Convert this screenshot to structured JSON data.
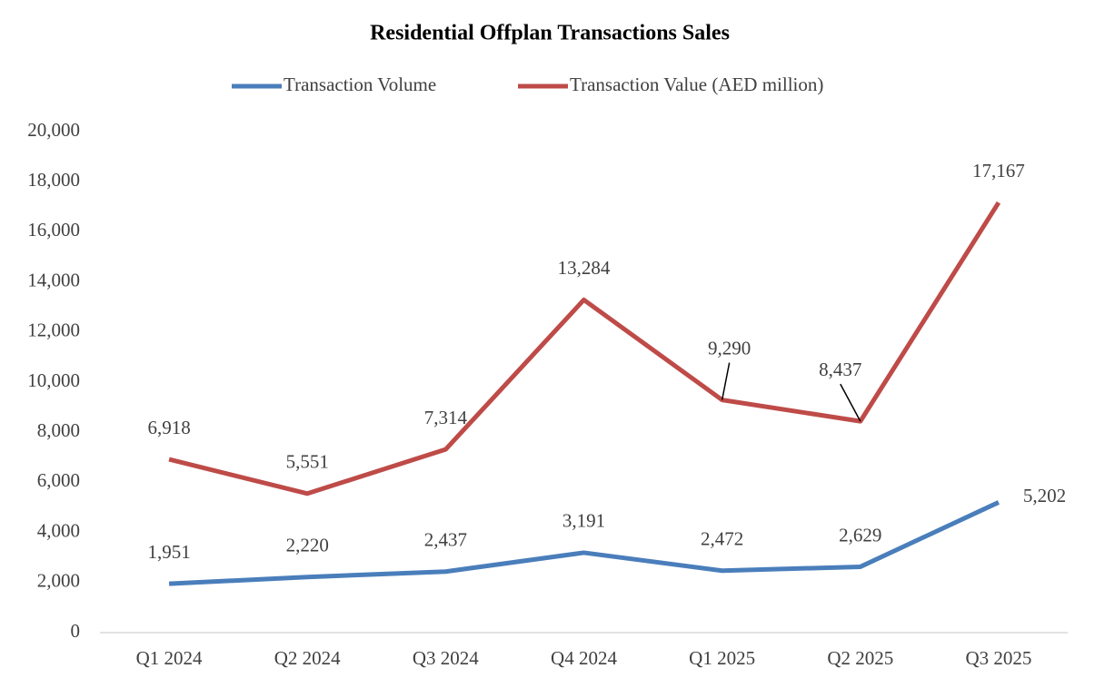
{
  "chart_data": {
    "type": "line",
    "title": "Residential Offplan Transactions Sales",
    "categories": [
      "Q1 2024",
      "Q2 2024",
      "Q3 2024",
      "Q4 2024",
      "Q1 2025",
      "Q2 2025",
      "Q3 2025"
    ],
    "series": [
      {
        "name": "Transaction Volume",
        "color": "#4a7ebb",
        "values": [
          1951,
          2220,
          2437,
          3191,
          2472,
          2629,
          5202
        ],
        "value_labels": [
          "1,951",
          "2,220",
          "2,437",
          "3,191",
          "2,472",
          "2,629",
          "5,202"
        ]
      },
      {
        "name": "Transaction Value (AED million)",
        "color": "#be4b48",
        "values": [
          6918,
          5551,
          7314,
          13284,
          9290,
          8437,
          17167
        ],
        "value_labels": [
          "6,918",
          "5,551",
          "7,314",
          "13,284",
          "9,290",
          "8,437",
          "17,167"
        ]
      }
    ],
    "ylim": [
      0,
      20000
    ],
    "yticks": [
      0,
      {
        "value": 2000,
        "label": "2,000"
      },
      {
        "value": 4000,
        "label": "4,000"
      },
      {
        "value": 6000,
        "label": "6,000"
      },
      {
        "value": 8000,
        "label": "8,000"
      },
      {
        "value": 10000,
        "label": "10,000"
      },
      {
        "value": 12000,
        "label": "12,000"
      },
      {
        "value": 14000,
        "label": "14,000"
      },
      {
        "value": 16000,
        "label": "16,000"
      },
      {
        "value": 18000,
        "label": "18,000"
      },
      {
        "value": 20000,
        "label": "20,000"
      }
    ],
    "legend": "top"
  }
}
